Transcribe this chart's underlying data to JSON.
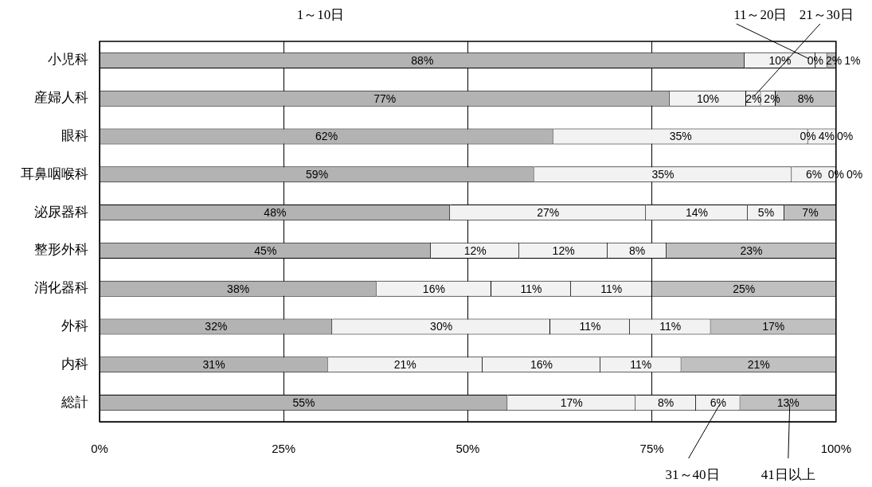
{
  "chart_data": {
    "type": "bar",
    "orientation": "horizontal",
    "stacked": true,
    "categories": [
      "小児科",
      "産婦人科",
      "眼科",
      "耳鼻咽喉科",
      "泌尿器科",
      "整形外科",
      "消化器科",
      "外科",
      "内科",
      "総計"
    ],
    "series": [
      {
        "name": "1～10日",
        "color": "#b3b3b3",
        "values": [
          87.6,
          77.4,
          61.6,
          59,
          47.6,
          45,
          37.6,
          31.6,
          31,
          55.4
        ],
        "value_labels": [
          "88%",
          "77%",
          "62%",
          "59%",
          "48%",
          "45%",
          "38%",
          "32%",
          "31%",
          "55%"
        ]
      },
      {
        "name": "11～20日",
        "color": "#f2f2f2",
        "values": [
          9.6,
          10.4,
          34.6,
          35,
          26.6,
          12,
          15.6,
          29.6,
          21,
          17.4
        ],
        "value_labels": [
          "10%",
          "10%",
          "35%",
          "35%",
          "27%",
          "12%",
          "16%",
          "30%",
          "21%",
          "17%"
        ]
      },
      {
        "name": "21～30日",
        "color": "#f2f2f2",
        "values": [
          0,
          2,
          0,
          6,
          13.8,
          12,
          10.8,
          10.8,
          16,
          8.2
        ],
        "value_labels": [
          "0%",
          "2%",
          "0%",
          "6%",
          "14%",
          "12%",
          "11%",
          "11%",
          "16%",
          "8%"
        ]
      },
      {
        "name": "31～40日",
        "color": "#f2f2f2",
        "values": [
          1.6,
          2,
          3.8,
          0,
          5,
          8,
          11,
          11,
          11,
          6
        ],
        "value_labels": [
          "2%",
          "2%",
          "4%",
          "0%",
          "5%",
          "8%",
          "11%",
          "11%",
          "11%",
          "6%"
        ]
      },
      {
        "name": "41日以上",
        "color": "#c0c0c0",
        "values": [
          1.2,
          8.2,
          0,
          0,
          7,
          23,
          25,
          17,
          21,
          13
        ],
        "value_labels": [
          "1%",
          "8%",
          "0%",
          "0%",
          "7%",
          "23%",
          "25%",
          "17%",
          "21%",
          "13%"
        ]
      }
    ],
    "xlim": [
      0,
      100
    ],
    "xticks": [
      {
        "value": 0,
        "label": "0%"
      },
      {
        "value": 25,
        "label": "25%"
      },
      {
        "value": 50,
        "label": "50%"
      },
      {
        "value": 75,
        "label": "75%"
      },
      {
        "value": 100,
        "label": "100%"
      }
    ],
    "grid": "x",
    "legend": false
  }
}
